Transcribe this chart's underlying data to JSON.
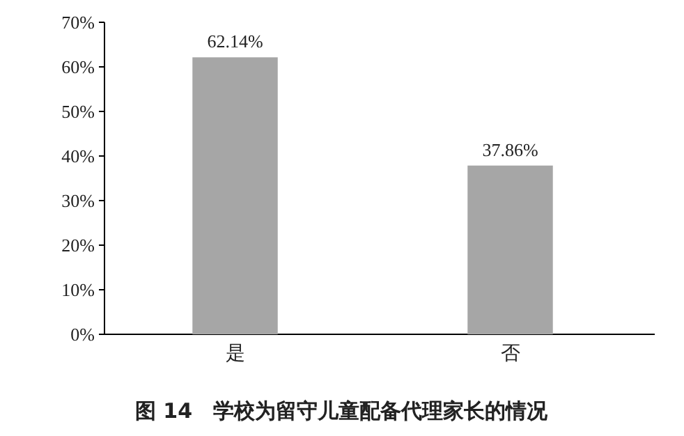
{
  "chart_data": {
    "type": "bar",
    "title": "图 14　学校为留守儿童配备代理家长的情况",
    "categories": [
      "是",
      "否"
    ],
    "values": [
      62.14,
      37.86
    ],
    "value_labels": [
      "62.14%",
      "37.86%"
    ],
    "color": "#a6a6a6",
    "ylim": [
      0,
      70
    ],
    "yticks": [
      {
        "value": 0,
        "label": "0%"
      },
      {
        "value": 10,
        "label": "10%"
      },
      {
        "value": 20,
        "label": "20%"
      },
      {
        "value": 30,
        "label": "30%"
      },
      {
        "value": 40,
        "label": "40%"
      },
      {
        "value": 50,
        "label": "50%"
      },
      {
        "value": 60,
        "label": "60%"
      },
      {
        "value": 70,
        "label": "70%"
      }
    ]
  }
}
